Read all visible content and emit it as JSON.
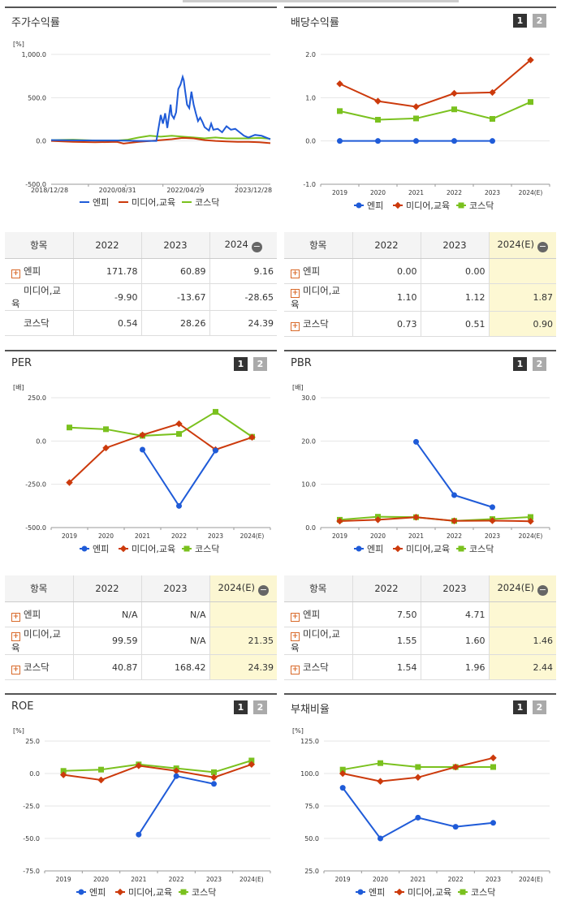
{
  "colors": {
    "enp": "#1f5bd8",
    "media": "#cc3a0c",
    "kosdaq": "#7ac11e"
  },
  "legend": [
    "엔피",
    "미디어,교육",
    "코스닥"
  ],
  "charts": {
    "price": {
      "title": "주가수익률",
      "unit": "[%]",
      "ymin": -500,
      "ymax": 1000,
      "yticks": [
        "1,000.0",
        "500.0",
        "0.0",
        "-500.0"
      ],
      "ytickvals": [
        1000,
        500,
        0,
        -500
      ],
      "xlabels": [
        "2018/12/28",
        "2020/08/31",
        "2022/04/29",
        "2023/12/28"
      ],
      "series": {
        "enp": [
          [
            0,
            10
          ],
          [
            0.1,
            8
          ],
          [
            0.2,
            5
          ],
          [
            0.3,
            5
          ],
          [
            0.4,
            0
          ],
          [
            0.48,
            0
          ],
          [
            0.5,
            300
          ],
          [
            0.51,
            200
          ],
          [
            0.52,
            320
          ],
          [
            0.53,
            150
          ],
          [
            0.545,
            420
          ],
          [
            0.55,
            300
          ],
          [
            0.56,
            260
          ],
          [
            0.57,
            330
          ],
          [
            0.58,
            600
          ],
          [
            0.59,
            650
          ],
          [
            0.6,
            740
          ],
          [
            0.605,
            700
          ],
          [
            0.61,
            600
          ],
          [
            0.62,
            420
          ],
          [
            0.63,
            380
          ],
          [
            0.64,
            570
          ],
          [
            0.65,
            420
          ],
          [
            0.66,
            320
          ],
          [
            0.67,
            230
          ],
          [
            0.68,
            270
          ],
          [
            0.69,
            220
          ],
          [
            0.7,
            160
          ],
          [
            0.72,
            120
          ],
          [
            0.73,
            200
          ],
          [
            0.74,
            130
          ],
          [
            0.76,
            140
          ],
          [
            0.78,
            100
          ],
          [
            0.8,
            170
          ],
          [
            0.82,
            130
          ],
          [
            0.84,
            140
          ],
          [
            0.86,
            100
          ],
          [
            0.88,
            60
          ],
          [
            0.9,
            40
          ],
          [
            0.93,
            70
          ],
          [
            0.96,
            60
          ],
          [
            1,
            20
          ]
        ],
        "media": [
          [
            0,
            0
          ],
          [
            0.1,
            -10
          ],
          [
            0.2,
            -15
          ],
          [
            0.3,
            -10
          ],
          [
            0.33,
            -30
          ],
          [
            0.4,
            -10
          ],
          [
            0.5,
            10
          ],
          [
            0.55,
            20
          ],
          [
            0.6,
            35
          ],
          [
            0.65,
            30
          ],
          [
            0.7,
            10
          ],
          [
            0.75,
            0
          ],
          [
            0.8,
            -5
          ],
          [
            0.85,
            -10
          ],
          [
            0.9,
            -10
          ],
          [
            0.95,
            -15
          ],
          [
            1,
            -25
          ]
        ],
        "kosdaq": [
          [
            0,
            10
          ],
          [
            0.1,
            15
          ],
          [
            0.2,
            5
          ],
          [
            0.3,
            5
          ],
          [
            0.35,
            15
          ],
          [
            0.4,
            40
          ],
          [
            0.45,
            60
          ],
          [
            0.5,
            50
          ],
          [
            0.55,
            60
          ],
          [
            0.6,
            50
          ],
          [
            0.65,
            40
          ],
          [
            0.7,
            30
          ],
          [
            0.75,
            40
          ],
          [
            0.8,
            30
          ],
          [
            0.85,
            30
          ],
          [
            0.9,
            30
          ],
          [
            0.95,
            35
          ],
          [
            1,
            25
          ]
        ]
      }
    },
    "dividend": {
      "title": "배당수익률",
      "unit": "",
      "ymin": -1,
      "ymax": 2,
      "yticks": [
        "2.0",
        "1.0",
        "0.0",
        "-1.0"
      ],
      "ytickvals": [
        2,
        1,
        0,
        -1
      ],
      "xlabels": [
        "2019",
        "2020",
        "2021",
        "2022",
        "2023",
        "2024(E)"
      ],
      "series": {
        "enp": [
          0,
          0,
          0,
          0,
          0,
          null
        ],
        "media": [
          1.32,
          0.92,
          0.79,
          1.1,
          1.12,
          1.87
        ],
        "kosdaq": [
          0.69,
          0.49,
          0.52,
          0.73,
          0.51,
          0.9
        ]
      }
    },
    "per": {
      "title": "PER",
      "unit": "[배]",
      "ymin": -500,
      "ymax": 250,
      "yticks": [
        "250.0",
        "0.0",
        "-250.0",
        "-500.0"
      ],
      "ytickvals": [
        250,
        0,
        -250,
        -500
      ],
      "xlabels": [
        "2019",
        "2020",
        "2021",
        "2022",
        "2023",
        "2024(E)"
      ],
      "series": {
        "enp": [
          null,
          null,
          -50,
          -375,
          -55,
          null
        ],
        "media": [
          -240,
          -40,
          35,
          99.59,
          -50,
          21.35
        ],
        "kosdaq": [
          78,
          68,
          30,
          40.87,
          168.42,
          24.39
        ]
      }
    },
    "pbr": {
      "title": "PBR",
      "unit": "[배]",
      "ymin": 0,
      "ymax": 30,
      "yticks": [
        "30.0",
        "20.0",
        "10.0",
        "0.0"
      ],
      "ytickvals": [
        30,
        20,
        10,
        0
      ],
      "xlabels": [
        "2019",
        "2020",
        "2021",
        "2022",
        "2023",
        "2024(E)"
      ],
      "series": {
        "enp": [
          null,
          null,
          19.8,
          7.5,
          4.71,
          null
        ],
        "media": [
          1.5,
          1.8,
          2.4,
          1.55,
          1.6,
          1.46
        ],
        "kosdaq": [
          1.8,
          2.5,
          2.4,
          1.54,
          1.96,
          2.44
        ]
      }
    },
    "roe": {
      "title": "ROE",
      "unit": "[%]",
      "ymin": -75,
      "ymax": 25,
      "yticks": [
        "25.0",
        "0.0",
        "-25.0",
        "-50.0",
        "-75.0"
      ],
      "ytickvals": [
        25,
        0,
        -25,
        -50,
        -75
      ],
      "xlabels": [
        "2019",
        "2020",
        "2021",
        "2022",
        "2023",
        "2024(E)"
      ],
      "series": {
        "enp": [
          null,
          null,
          -47,
          -2,
          -8,
          null
        ],
        "media": [
          -1,
          -5,
          6,
          2,
          -3,
          7
        ],
        "kosdaq": [
          2,
          3,
          7,
          4,
          1,
          10
        ]
      }
    },
    "debt": {
      "title": "부채비율",
      "unit": "[%]",
      "ymin": 25,
      "ymax": 125,
      "yticks": [
        "125.0",
        "100.0",
        "75.0",
        "50.0",
        "25.0"
      ],
      "ytickvals": [
        125,
        100,
        75,
        50,
        25
      ],
      "xlabels": [
        "2019",
        "2020",
        "2021",
        "2022",
        "2023",
        "2024(E)"
      ],
      "series": {
        "enp": [
          89,
          50,
          66,
          59,
          62,
          null
        ],
        "media": [
          100,
          94,
          97,
          105,
          112,
          null
        ],
        "kosdaq": [
          103,
          108,
          105,
          105,
          105,
          null
        ]
      }
    }
  },
  "tables": {
    "price": {
      "header": [
        "항목",
        "2022",
        "2023",
        "2024"
      ],
      "rows": [
        {
          "name": "엔피",
          "plus": true,
          "v": [
            "171.78",
            "60.89",
            "9.16"
          ]
        },
        {
          "name": "미디어,교육",
          "plus": false,
          "v": [
            "-9.90",
            "-13.67",
            "-28.65"
          ]
        },
        {
          "name": "코스닥",
          "plus": false,
          "v": [
            "0.54",
            "28.26",
            "24.39"
          ]
        }
      ]
    },
    "dividend": {
      "header": [
        "항목",
        "2022",
        "2023",
        "2024(E)"
      ],
      "rows": [
        {
          "name": "엔피",
          "plus": true,
          "v": [
            "0.00",
            "0.00",
            ""
          ]
        },
        {
          "name": "미디어,교육",
          "plus": true,
          "v": [
            "1.10",
            "1.12",
            "1.87"
          ]
        },
        {
          "name": "코스닥",
          "plus": true,
          "v": [
            "0.73",
            "0.51",
            "0.90"
          ]
        }
      ]
    },
    "per": {
      "header": [
        "항목",
        "2022",
        "2023",
        "2024(E)"
      ],
      "rows": [
        {
          "name": "엔피",
          "plus": true,
          "v": [
            "N/A",
            "N/A",
            ""
          ]
        },
        {
          "name": "미디어,교육",
          "plus": true,
          "v": [
            "99.59",
            "N/A",
            "21.35"
          ]
        },
        {
          "name": "코스닥",
          "plus": true,
          "v": [
            "40.87",
            "168.42",
            "24.39"
          ]
        }
      ]
    },
    "pbr": {
      "header": [
        "항목",
        "2022",
        "2023",
        "2024(E)"
      ],
      "rows": [
        {
          "name": "엔피",
          "plus": true,
          "v": [
            "7.50",
            "4.71",
            ""
          ]
        },
        {
          "name": "미디어,교육",
          "plus": true,
          "v": [
            "1.55",
            "1.60",
            "1.46"
          ]
        },
        {
          "name": "코스닥",
          "plus": true,
          "v": [
            "1.54",
            "1.96",
            "2.44"
          ]
        }
      ]
    }
  },
  "pager": [
    "1",
    "2"
  ],
  "minus_glyph": "−",
  "plus_glyph": "+"
}
